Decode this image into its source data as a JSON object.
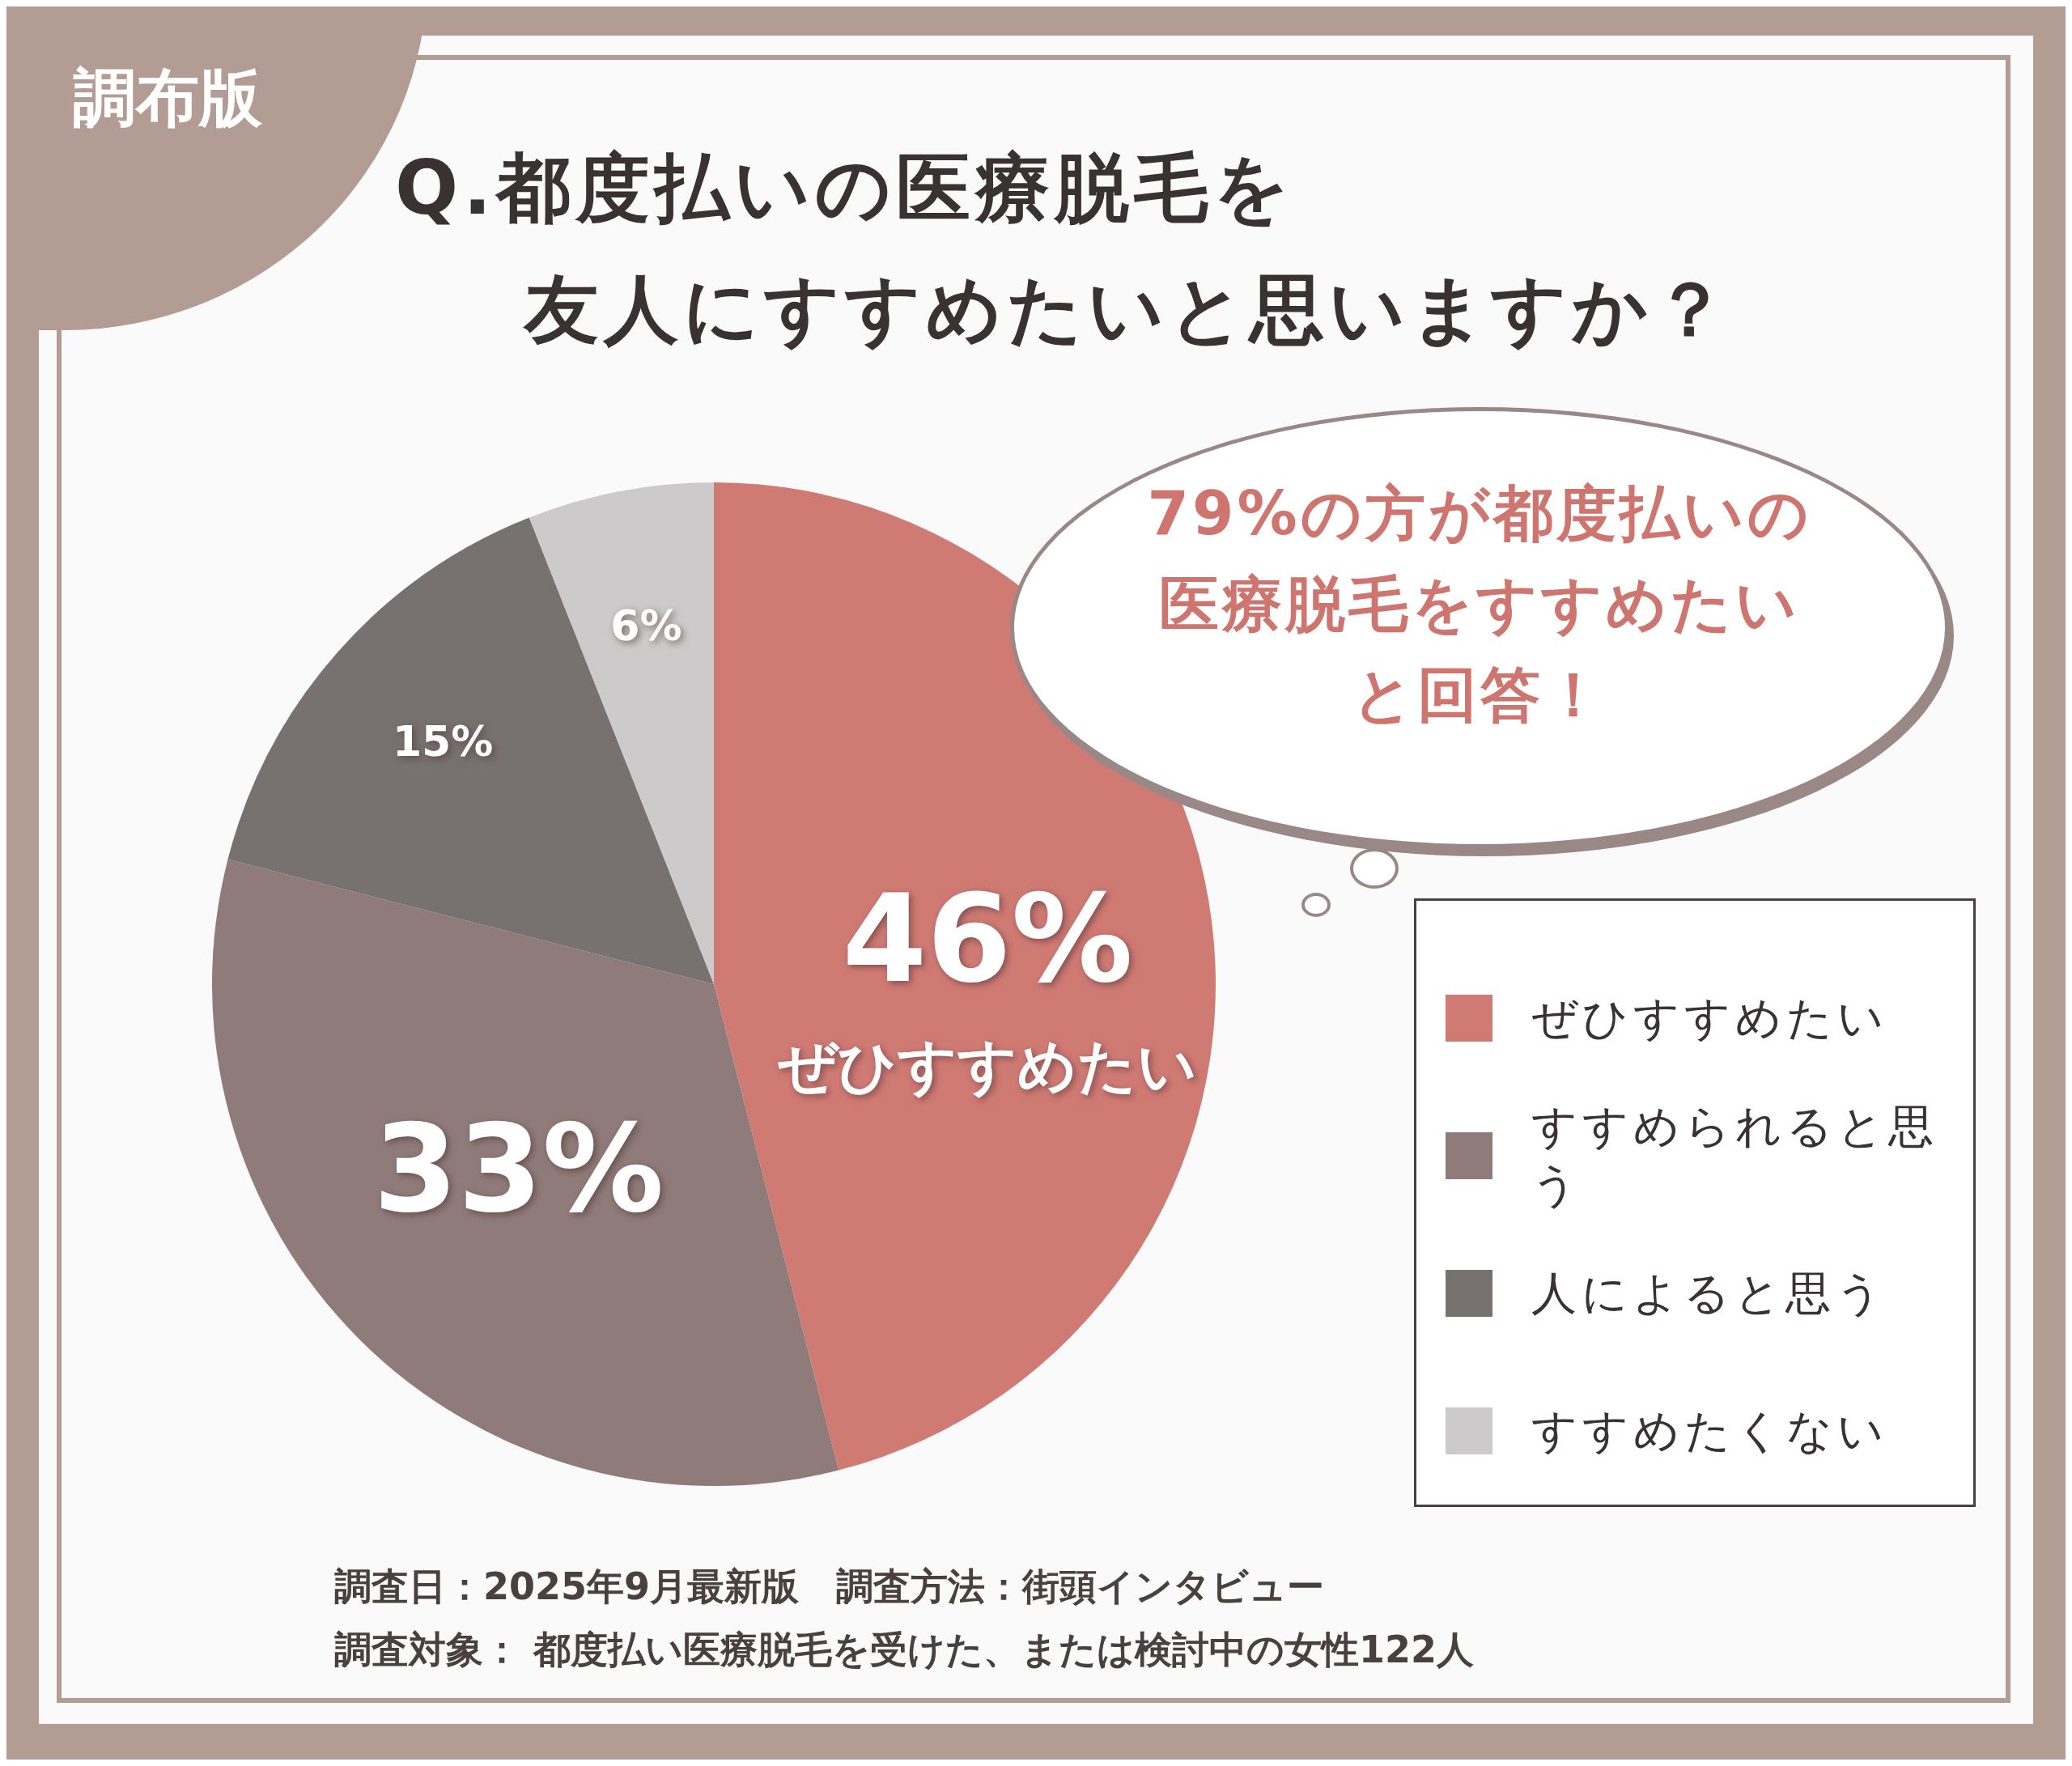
{
  "chart_data": {
    "type": "pie",
    "title": "Q.都度払いの医療脱毛を友人にすすめたいと思いますか？",
    "subtitle": "調布版",
    "categories": [
      "ぜひすすめたい",
      "すすめられると思う",
      "人によると思う",
      "すすめたくない"
    ],
    "values": [
      46,
      33,
      15,
      6
    ],
    "colors": [
      "#d07a74",
      "#8f7b79",
      "#777170",
      "#cccaca"
    ],
    "value_labels": [
      "46%",
      "33%",
      "15%",
      "6%"
    ],
    "legend": "bottom right",
    "annotations": [
      {
        "text": "ぜひすすめたい",
        "x": "ぜひすすめたい"
      },
      "79%の方が都度払いの医療脱毛をすすめたいと回答！",
      "調査日：2025年9月最新版　調査方法：街頭インタビュー",
      "調査対象： 都度払い医療脱毛を受けた、または検討中の女性122人"
    ]
  }
}
